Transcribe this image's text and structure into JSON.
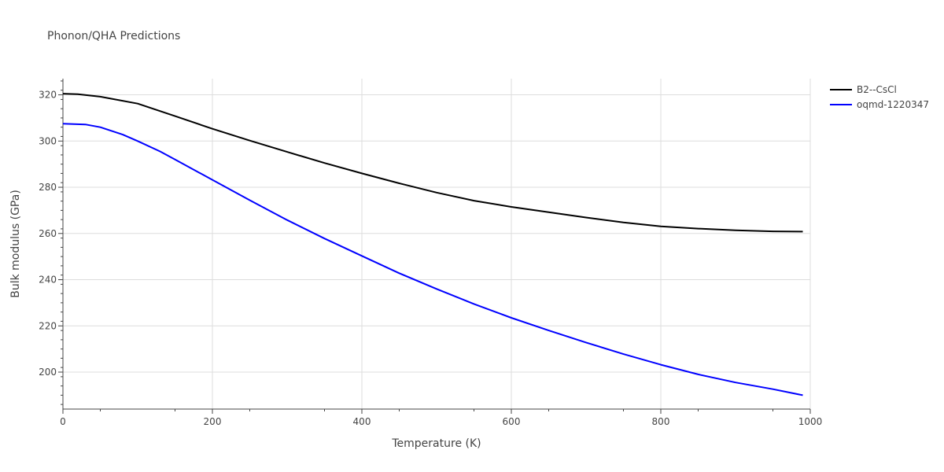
{
  "chart_data": {
    "type": "line",
    "title": "Phonon/QHA Predictions",
    "xlabel": "Temperature (K)",
    "ylabel": "Bulk modulus (GPa)",
    "xlim": [
      0,
      1000
    ],
    "ylim": [
      184,
      327
    ],
    "xticks": [
      0,
      200,
      400,
      600,
      800,
      1000
    ],
    "xtick_labels": [
      "0",
      "200",
      "400",
      "600",
      "800",
      "1000"
    ],
    "yticks": [
      200,
      220,
      240,
      260,
      280,
      300,
      320
    ],
    "ytick_labels": [
      "200",
      "220",
      "240",
      "260",
      "280",
      "300",
      "320"
    ],
    "grid": true,
    "legend_position": "top-right",
    "series": [
      {
        "name": "B2--CsCl",
        "color": "#000000",
        "x": [
          0,
          20,
          50,
          100,
          150,
          200,
          250,
          300,
          350,
          400,
          450,
          500,
          550,
          600,
          650,
          700,
          750,
          800,
          850,
          900,
          950,
          990
        ],
        "y": [
          320.5,
          320.3,
          319.2,
          316.2,
          310.8,
          305.3,
          300.2,
          295.3,
          290.5,
          286.0,
          281.7,
          277.7,
          274.2,
          271.5,
          269.2,
          266.9,
          264.8,
          263.1,
          262.1,
          261.4,
          260.9,
          260.8
        ]
      },
      {
        "name": "oqmd-1220347",
        "color": "#0000ff",
        "x": [
          0,
          30,
          50,
          80,
          100,
          130,
          150,
          200,
          250,
          300,
          350,
          400,
          450,
          500,
          550,
          600,
          650,
          700,
          750,
          800,
          850,
          900,
          950,
          990
        ],
        "y": [
          307.5,
          307.2,
          306.0,
          302.8,
          300.0,
          295.5,
          292.0,
          283.2,
          274.4,
          265.8,
          257.8,
          250.3,
          242.8,
          236.0,
          229.5,
          223.5,
          218.0,
          212.8,
          207.8,
          203.2,
          199.0,
          195.5,
          192.6,
          190.0
        ]
      }
    ]
  }
}
